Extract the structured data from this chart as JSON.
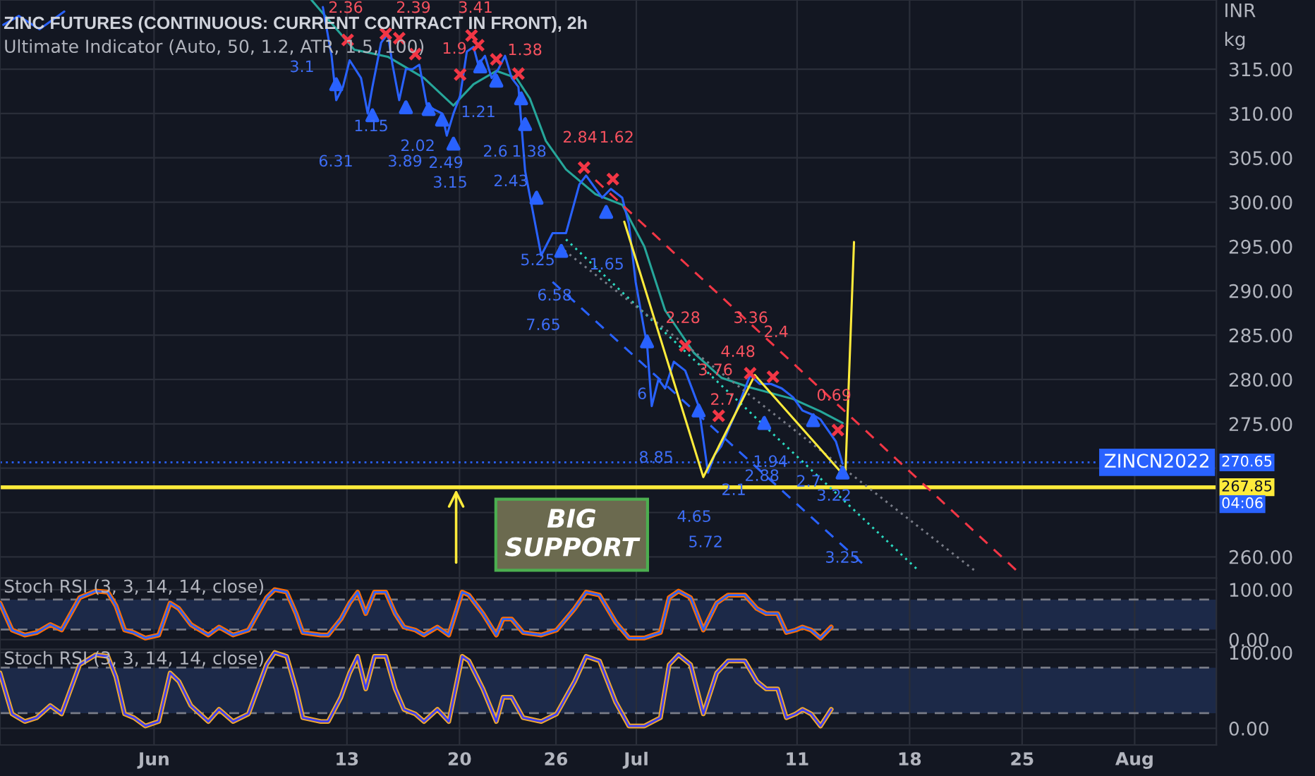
{
  "chart_data": [
    {
      "type": "line",
      "title": "ZINC FUTURES (CONTINUOUS: CURRENT CONTRACT IN FRONT), 2h",
      "subtitle": "Ultimate Indicator (Auto, 50, 1.2, ATR, 1.5, 100)",
      "xlim": [
        "2022-05-22T10:00",
        "2022-08-06T02:00"
      ],
      "ylim": [
        257.6,
        322.8
      ],
      "xticks": [
        {
          "value": "2022-06-01",
          "label": null
        },
        {
          "value": "2022-06-13",
          "label": null
        },
        {
          "value": "2022-06-20",
          "label": null
        },
        {
          "value": "2022-06-26",
          "label": null
        },
        {
          "value": "2022-07-01",
          "label": null
        },
        {
          "value": "2022-07-11",
          "label": null
        },
        {
          "value": "2022-07-18",
          "label": null
        },
        {
          "value": "2022-07-25",
          "label": null
        },
        {
          "value": "2022-08-01",
          "label": null
        }
      ],
      "yticks": [
        {
          "value": 260,
          "label": "260.00"
        },
        {
          "value": 265,
          "label": null
        },
        {
          "value": 270,
          "label": null
        },
        {
          "value": 275,
          "label": "275.00"
        },
        {
          "value": 280,
          "label": "280.00"
        },
        {
          "value": 285,
          "label": "285.00"
        },
        {
          "value": 290,
          "label": "290.00"
        },
        {
          "value": 295,
          "label": "295.00"
        },
        {
          "value": 300,
          "label": "300.00"
        },
        {
          "value": 305,
          "label": "305.00"
        },
        {
          "value": 310,
          "label": "310.00"
        },
        {
          "value": 315,
          "label": "315.00"
        }
      ],
      "tick_labels": "y",
      "grid": true,
      "series": [
        {
          "type": "line",
          "color": "#26a69a",
          "line_style": "solid",
          "x": [
            "2022-06-10T19:00",
            "2022-06-13T11:00",
            "2022-06-15T13:00",
            "2022-06-17T19:00",
            "2022-06-19T15:00",
            "2022-06-20T21:00",
            "2022-06-22T07:00",
            "2022-06-23T13:00",
            "2022-06-24T09:00",
            "2022-06-25T09:00",
            "2022-06-26T15:00",
            "2022-06-28T11:00",
            "2022-06-30T03:00",
            "2022-07-01T12:00",
            "2022-07-02T19:00",
            "2022-07-04T14:00",
            "2022-07-06T07:00",
            "2022-07-08T02:00",
            "2022-07-10T18:00",
            "2022-07-12T11:00",
            "2022-07-13T20:00"
          ],
          "values": [
            322.8,
            317.2,
            316.4,
            314.0,
            310.9,
            313.3,
            314.8,
            314.0,
            311.7,
            306.9,
            303.7,
            300.9,
            299.7,
            295.0,
            287.8,
            283.0,
            280.2,
            279.1,
            277.8,
            276.4,
            275.1
          ]
        },
        {
          "type": "line",
          "color": "#2962ff",
          "line_style": "solid",
          "x": [
            "2022-05-22T15:00",
            "2022-05-23T14:00",
            "2022-05-24T21:00",
            "2022-05-26T10:00",
            "2022-05-26T13:00",
            "2022-06-11T12:00",
            "2022-06-12T01:00",
            "2022-06-12T08:00",
            "2022-06-12T18:00",
            "2022-06-13T04:00",
            "2022-06-13T21:00",
            "2022-06-14T07:00",
            "2022-06-14T14:00",
            "2022-06-15T03:00",
            "2022-06-15T13:00",
            "2022-06-15T20:00",
            "2022-06-16T06:00",
            "2022-06-16T16:00",
            "2022-06-17T02:00",
            "2022-06-17T12:00",
            "2022-06-17T23:00",
            "2022-06-18T09:00",
            "2022-06-18T22:00",
            "2022-06-19T05:00",
            "2022-06-19T15:00",
            "2022-06-20T01:00",
            "2022-06-20T11:00",
            "2022-06-20T21:00",
            "2022-06-21T04:00",
            "2022-06-21T14:00",
            "2022-06-22T00:00",
            "2022-06-22T10:00",
            "2022-06-22T20:00",
            "2022-06-23T06:00",
            "2022-06-23T16:00",
            "2022-06-24T02:00",
            "2022-06-25T02:00",
            "2022-06-25T19:00",
            "2022-06-26T15:00",
            "2022-06-27T11:00",
            "2022-06-27T21:00",
            "2022-06-28T21:00",
            "2022-06-29T10:00",
            "2022-06-30T03:00",
            "2022-06-30T13:00",
            "2022-06-30T23:00",
            "2022-07-01T12:00",
            "2022-07-01T16:00",
            "2022-07-01T23:00",
            "2022-07-02T09:00",
            "2022-07-02T19:00",
            "2022-07-03T08:00",
            "2022-07-04T01:00",
            "2022-07-04T21:00",
            "2022-07-05T11:00",
            "2022-07-05T21:00",
            "2022-07-06T07:00",
            "2022-07-07T03:00",
            "2022-07-08T02:00",
            "2022-07-08T16:00",
            "2022-07-09T09:00",
            "2022-07-10T01:00",
            "2022-07-10T18:00",
            "2022-07-11T08:00",
            "2022-07-12T00:00",
            "2022-07-12T11:00",
            "2022-07-13T10:00",
            "2022-07-13T20:00"
          ],
          "values": [
            320.0,
            321.0,
            319.5,
            321.5,
            null,
            322.0,
            316.5,
            311.5,
            313.0,
            316.0,
            314.0,
            310.0,
            313.0,
            318.0,
            319.0,
            315.5,
            311.5,
            315.0,
            315.0,
            315.5,
            311.0,
            310.5,
            310.0,
            307.5,
            310.0,
            312.0,
            317.0,
            317.5,
            315.5,
            316.5,
            314.0,
            315.0,
            316.5,
            314.0,
            313.0,
            303.5,
            294.0,
            296.5,
            296.5,
            302.0,
            303.0,
            300.5,
            301.5,
            300.5,
            297.5,
            291.0,
            285.5,
            284.0,
            277.0,
            280.0,
            279.0,
            282.0,
            281.0,
            277.0,
            269.5,
            271.5,
            272.5,
            276.0,
            280.5,
            279.5,
            279.5,
            279.0,
            278.0,
            276.5,
            276.0,
            275.5,
            273.0,
            270.5
          ]
        },
        {
          "type": "line",
          "color": "#f23645",
          "line_style": "dashed",
          "x": [
            "2022-06-28T11:00",
            "2022-07-24T15:00"
          ],
          "values": [
            302.5,
            258.5
          ]
        },
        {
          "type": "line",
          "color": "#2bd9c0",
          "line_style": "dotted",
          "x": [
            "2022-06-26T15:00",
            "2022-07-18T14:00"
          ],
          "values": [
            295.8,
            258.4
          ]
        },
        {
          "type": "line",
          "color": "#2962ff",
          "line_style": "dashed",
          "x": [
            "2022-06-25T19:00",
            "2022-07-15T02:00"
          ],
          "values": [
            291.0,
            259.2
          ]
        },
        {
          "type": "line",
          "color": "#787b86",
          "line_style": "dotted",
          "x": [
            "2022-06-26T05:00",
            "2022-07-22T02:00"
          ],
          "values": [
            295.0,
            258.4
          ]
        },
        {
          "type": "line",
          "color": "#ffeb3b",
          "line_style": "solid",
          "x": [
            "2022-06-30T06:00",
            "2022-07-05T04:00",
            "2022-07-08T09:00",
            "2022-07-14T00:00",
            "2022-07-14T13:00"
          ],
          "values": [
            297.8,
            269.0,
            280.5,
            269.0,
            295.5
          ]
        },
        {
          "type": "scatter",
          "color": "#f23645",
          "marker": "cross",
          "x": [
            "2022-06-13T01:00",
            "2022-06-15T10:00",
            "2022-06-16T06:00",
            "2022-06-17T06:00",
            "2022-06-20T01:00",
            "2022-06-20T18:00",
            "2022-06-21T04:00",
            "2022-06-22T07:00",
            "2022-06-23T16:00",
            "2022-06-27T18:00",
            "2022-06-29T13:00",
            "2022-07-04T01:00",
            "2022-07-06T03:00",
            "2022-07-08T02:00",
            "2022-07-09T12:00",
            "2022-07-13T13:00"
          ],
          "values": [
            318.3,
            319.0,
            318.5,
            316.7,
            314.4,
            318.8,
            317.7,
            316.1,
            314.5,
            303.9,
            302.6,
            283.8,
            275.9,
            280.7,
            280.3,
            274.3
          ]
        },
        {
          "type": "scatter",
          "color": "#2962ff",
          "marker": "triangle",
          "x": [
            "2022-06-12T08:00",
            "2022-06-14T14:00",
            "2022-06-16T16:00",
            "2022-06-18T02:00",
            "2022-06-18T22:00",
            "2022-06-19T15:00",
            "2022-06-21T07:00",
            "2022-06-22T07:00",
            "2022-06-23T20:00",
            "2022-06-24T02:00",
            "2022-06-24T19:00",
            "2022-06-26T08:00",
            "2022-06-29T03:00",
            "2022-07-01T16:00",
            "2022-07-04T21:00",
            "2022-07-08T23:00",
            "2022-07-12T00:00",
            "2022-07-13T20:00"
          ],
          "values": [
            313.3,
            309.8,
            310.7,
            310.5,
            309.3,
            306.6,
            315.3,
            313.7,
            311.7,
            308.8,
            300.5,
            294.5,
            298.9,
            284.3,
            276.5,
            275.1,
            275.4,
            269.5
          ]
        }
      ],
      "ref_lines": [
        {
          "axis": "y",
          "value": 270.65,
          "label": "270.65",
          "color": "#2962ff",
          "line_style": "dotted"
        },
        {
          "axis": "y",
          "value": 267.85,
          "label": "267.85",
          "color": "#ffeb3b",
          "line_style": "solid"
        }
      ],
      "annotations": [
        "INR",
        "kg",
        "ZINCN2022",
        "04:06",
        "BIG\nSUPPORT",
        "2.36",
        "2.39",
        "3.41",
        "1.9",
        "1.38",
        "2.84",
        "1.62",
        "2.28",
        "3.36",
        "2.4",
        "4.48",
        "3.76",
        "2.7",
        "0.69",
        "3.1",
        "1.15",
        "6.31",
        "3.89",
        "2.02",
        "2.49",
        "3.15",
        "1.21",
        "2.6",
        "1.38",
        "2.43",
        "5.25",
        "1.65",
        "6.58",
        "7.65",
        "6",
        "8.85",
        "1.94",
        "2.88",
        "2.1",
        "2.7",
        "3.22",
        "4.65",
        "5.72",
        "3.25"
      ]
    },
    {
      "type": "line",
      "title": "Stoch RSI (3, 3, 14, 14, close)",
      "xlim": [
        "2022-05-22T10:00",
        "2022-08-06T02:00"
      ],
      "ylim": [
        -20,
        123
      ],
      "xticks": [
        {
          "value": "2022-06-01",
          "label": null
        },
        {
          "value": "2022-06-13",
          "label": null
        },
        {
          "value": "2022-06-20",
          "label": null
        },
        {
          "value": "2022-06-26",
          "label": null
        },
        {
          "value": "2022-07-01",
          "label": null
        },
        {
          "value": "2022-07-11",
          "label": null
        },
        {
          "value": "2022-07-18",
          "label": null
        },
        {
          "value": "2022-07-25",
          "label": null
        },
        {
          "value": "2022-08-01",
          "label": null
        }
      ],
      "yticks": [
        {
          "value": 0,
          "label": "0.00"
        },
        {
          "value": 100,
          "label": "100.00"
        }
      ],
      "tick_labels": "y",
      "grid": true,
      "bands": [
        {
          "axis": "y",
          "from": 20,
          "to": 80,
          "color": "#1e2b4d"
        }
      ],
      "ref_lines": [
        {
          "axis": "y",
          "value": 80,
          "color": "#787b86",
          "line_style": "dashed"
        },
        {
          "axis": "y",
          "value": 20,
          "color": "#787b86",
          "line_style": "dashed"
        }
      ],
      "x": [
        "2022-05-22T10:00",
        "2022-05-23T04:00",
        "2022-05-23T23:00",
        "2022-05-24T17:00",
        "2022-05-25T13:00",
        "2022-05-26T06:00",
        "2022-05-27T09:00",
        "2022-05-28T09:00",
        "2022-05-29T03:00",
        "2022-05-29T15:00",
        "2022-05-30T04:00",
        "2022-05-30T18:00",
        "2022-05-31T11:00",
        "2022-06-01T07:00",
        "2022-06-02T00:00",
        "2022-06-02T13:00",
        "2022-06-03T07:00",
        "2022-06-04T09:00",
        "2022-06-05T01:00",
        "2022-06-05T22:00",
        "2022-06-06T21:00",
        "2022-06-08T00:00",
        "2022-06-08T12:00",
        "2022-06-09T06:00",
        "2022-06-09T20:00",
        "2022-06-10T06:00",
        "2022-06-11T09:00",
        "2022-06-11T20:00",
        "2022-06-12T15:00",
        "2022-06-13T04:00",
        "2022-06-13T16:00",
        "2022-06-14T04:00",
        "2022-06-14T17:00",
        "2022-06-15T10:00",
        "2022-06-16T00:00",
        "2022-06-16T13:00",
        "2022-06-17T06:00",
        "2022-06-17T19:00",
        "2022-06-18T15:00",
        "2022-06-19T08:00",
        "2022-06-20T04:00",
        "2022-06-20T14:00",
        "2022-06-21T11:00",
        "2022-06-22T07:00",
        "2022-06-22T17:00",
        "2022-06-23T06:00",
        "2022-06-23T23:00",
        "2022-06-25T02:00",
        "2022-06-26T01:00",
        "2022-06-27T04:00",
        "2022-06-27T21:00",
        "2022-06-28T17:00",
        "2022-06-29T17:00",
        "2022-06-30T13:00",
        "2022-07-01T12:00",
        "2022-07-02T12:00",
        "2022-07-03T01:00",
        "2022-07-03T15:00",
        "2022-07-04T09:00",
        "2022-07-05T04:00",
        "2022-07-06T00:00",
        "2022-07-06T17:00",
        "2022-07-07T18:00",
        "2022-07-08T12:00",
        "2022-07-09T02:00",
        "2022-07-09T19:00",
        "2022-07-10T08:00",
        "2022-07-10T22:00",
        "2022-07-11T08:00",
        "2022-07-11T21:00",
        "2022-07-12T11:00",
        "2022-07-13T03:00"
      ],
      "series": [
        {
          "color": "#2962ff",
          "values": [
            73,
            19,
            9,
            14,
            30,
            19,
            84,
            97,
            95,
            68,
            19,
            14,
            3,
            9,
            73,
            62,
            30,
            9,
            25,
            9,
            19,
            84,
            100,
            95,
            52,
            14,
            9,
            9,
            41,
            73,
            95,
            52,
            95,
            95,
            52,
            25,
            19,
            9,
            25,
            9,
            95,
            89,
            52,
            9,
            41,
            41,
            14,
            9,
            19,
            62,
            95,
            89,
            35,
            3,
            3,
            14,
            84,
            97,
            84,
            19,
            73,
            89,
            89,
            62,
            52,
            52,
            14,
            19,
            25,
            19,
            3,
            25
          ]
        },
        {
          "color": "#ff6d00",
          "values": [
            73,
            19,
            9,
            14,
            30,
            19,
            84,
            97,
            95,
            68,
            19,
            14,
            3,
            9,
            73,
            62,
            30,
            9,
            25,
            9,
            19,
            84,
            100,
            95,
            52,
            14,
            9,
            9,
            41,
            73,
            95,
            52,
            95,
            95,
            52,
            25,
            19,
            9,
            25,
            9,
            95,
            89,
            52,
            9,
            41,
            41,
            14,
            9,
            19,
            62,
            95,
            89,
            35,
            3,
            3,
            14,
            84,
            97,
            84,
            19,
            73,
            89,
            89,
            62,
            52,
            52,
            14,
            19,
            25,
            19,
            3,
            25
          ]
        }
      ]
    },
    {
      "type": "line",
      "title": "Stoch RSI (3, 3, 14, 14, close)",
      "xlim": [
        "2022-05-22T10:00",
        "2022-08-06T02:00"
      ],
      "ylim": [
        -22,
        104
      ],
      "xticks": [
        {
          "value": "2022-06-01",
          "label": "Jun"
        },
        {
          "value": "2022-06-13",
          "label": "13"
        },
        {
          "value": "2022-06-20",
          "label": "20"
        },
        {
          "value": "2022-06-26",
          "label": "26"
        },
        {
          "value": "2022-07-01",
          "label": "Jul"
        },
        {
          "value": "2022-07-11",
          "label": "11"
        },
        {
          "value": "2022-07-18",
          "label": "18"
        },
        {
          "value": "2022-07-25",
          "label": "25"
        },
        {
          "value": "2022-08-01",
          "label": "Aug"
        }
      ],
      "yticks": [
        {
          "value": 0,
          "label": "0.00"
        },
        {
          "value": 100,
          "label": "100.00"
        }
      ],
      "grid": true,
      "bands": [
        {
          "axis": "y",
          "from": 20,
          "to": 80,
          "color": "#1e2b4d"
        }
      ],
      "ref_lines": [
        {
          "axis": "y",
          "value": 80,
          "color": "#787b86",
          "line_style": "dashed"
        },
        {
          "axis": "y",
          "value": 20,
          "color": "#787b86",
          "line_style": "dashed"
        }
      ],
      "x": [
        "2022-05-22T10:00",
        "2022-05-23T04:00",
        "2022-05-23T23:00",
        "2022-05-24T17:00",
        "2022-05-25T13:00",
        "2022-05-26T06:00",
        "2022-05-27T09:00",
        "2022-05-28T09:00",
        "2022-05-29T03:00",
        "2022-05-29T15:00",
        "2022-05-30T04:00",
        "2022-05-30T18:00",
        "2022-05-31T11:00",
        "2022-06-01T07:00",
        "2022-06-02T00:00",
        "2022-06-02T13:00",
        "2022-06-03T07:00",
        "2022-06-04T09:00",
        "2022-06-05T01:00",
        "2022-06-05T22:00",
        "2022-06-06T21:00",
        "2022-06-08T00:00",
        "2022-06-08T12:00",
        "2022-06-09T06:00",
        "2022-06-09T20:00",
        "2022-06-10T06:00",
        "2022-06-11T09:00",
        "2022-06-11T20:00",
        "2022-06-12T15:00",
        "2022-06-13T04:00",
        "2022-06-13T16:00",
        "2022-06-14T04:00",
        "2022-06-14T17:00",
        "2022-06-15T10:00",
        "2022-06-16T00:00",
        "2022-06-16T13:00",
        "2022-06-17T06:00",
        "2022-06-17T19:00",
        "2022-06-18T15:00",
        "2022-06-19T08:00",
        "2022-06-20T04:00",
        "2022-06-20T14:00",
        "2022-06-21T11:00",
        "2022-06-22T07:00",
        "2022-06-22T17:00",
        "2022-06-23T06:00",
        "2022-06-23T23:00",
        "2022-06-25T02:00",
        "2022-06-26T01:00",
        "2022-06-27T04:00",
        "2022-06-27T21:00",
        "2022-06-28T17:00",
        "2022-06-29T17:00",
        "2022-06-30T13:00",
        "2022-07-01T12:00",
        "2022-07-02T12:00",
        "2022-07-03T01:00",
        "2022-07-03T15:00",
        "2022-07-04T09:00",
        "2022-07-05T04:00",
        "2022-07-06T00:00",
        "2022-07-06T17:00",
        "2022-07-07T18:00",
        "2022-07-08T12:00",
        "2022-07-09T02:00",
        "2022-07-09T19:00",
        "2022-07-10T08:00",
        "2022-07-10T22:00",
        "2022-07-11T08:00",
        "2022-07-11T21:00",
        "2022-07-12T11:00",
        "2022-07-13T03:00"
      ],
      "series": [
        {
          "color": "#3d3df5",
          "values": [
            73,
            19,
            9,
            14,
            30,
            19,
            84,
            97,
            95,
            68,
            19,
            14,
            3,
            9,
            73,
            62,
            30,
            9,
            25,
            9,
            19,
            84,
            100,
            95,
            52,
            14,
            9,
            9,
            41,
            73,
            95,
            52,
            95,
            95,
            52,
            25,
            19,
            9,
            25,
            9,
            95,
            89,
            52,
            9,
            41,
            41,
            14,
            9,
            19,
            62,
            95,
            89,
            35,
            3,
            3,
            14,
            84,
            97,
            84,
            19,
            73,
            89,
            89,
            62,
            52,
            52,
            14,
            19,
            25,
            19,
            3,
            25
          ]
        },
        {
          "color": "#f0a830",
          "values": [
            73,
            19,
            9,
            14,
            30,
            19,
            84,
            97,
            95,
            68,
            19,
            14,
            3,
            9,
            73,
            62,
            30,
            9,
            25,
            9,
            19,
            84,
            100,
            95,
            52,
            14,
            9,
            9,
            41,
            73,
            95,
            52,
            95,
            95,
            52,
            25,
            19,
            9,
            25,
            9,
            95,
            89,
            52,
            9,
            41,
            41,
            14,
            9,
            19,
            62,
            95,
            89,
            35,
            3,
            3,
            14,
            84,
            97,
            84,
            19,
            73,
            89,
            89,
            62,
            52,
            52,
            14,
            19,
            25,
            19,
            3,
            25
          ]
        }
      ]
    }
  ]
}
